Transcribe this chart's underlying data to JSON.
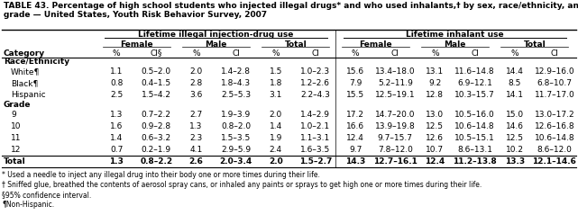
{
  "title": "TABLE 43. Percentage of high school students who injected illegal drugs* and who used inhalants,† by sex, race/ethnicity, and\ngrade — United States, Youth Risk Behavior Survey, 2007",
  "col_header_1": "Lifetime illegal injection-drug use",
  "col_header_2": "Lifetime inhalant use",
  "sub_headers": [
    "Female",
    "Male",
    "Total",
    "Female",
    "Male",
    "Total"
  ],
  "col_labels": [
    "%",
    "CI§",
    "%",
    "CI",
    "%",
    "CI",
    "%",
    "CI",
    "%",
    "CI",
    "%",
    "CI"
  ],
  "category_label": "Category",
  "sections": [
    {
      "name": "Race/Ethnicity",
      "rows": [
        {
          "label": "White¶",
          "values": [
            "1.1",
            "0.5–2.0",
            "2.0",
            "1.4–2.8",
            "1.5",
            "1.0–2.3",
            "15.6",
            "13.4–18.0",
            "13.1",
            "11.6–14.8",
            "14.4",
            "12.9–16.0"
          ]
        },
        {
          "label": "Black¶",
          "values": [
            "0.8",
            "0.4–1.5",
            "2.8",
            "1.8–4.3",
            "1.8",
            "1.2–2.6",
            "7.9",
            "5.2–11.9",
            "9.2",
            "6.9–12.1",
            "8.5",
            "6.8–10.7"
          ]
        },
        {
          "label": "Hispanic",
          "values": [
            "2.5",
            "1.5–4.2",
            "3.6",
            "2.5–5.3",
            "3.1",
            "2.2–4.3",
            "15.5",
            "12.5–19.1",
            "12.8",
            "10.3–15.7",
            "14.1",
            "11.7–17.0"
          ]
        }
      ]
    },
    {
      "name": "Grade",
      "rows": [
        {
          "label": "9",
          "values": [
            "1.3",
            "0.7–2.2",
            "2.7",
            "1.9–3.9",
            "2.0",
            "1.4–2.9",
            "17.2",
            "14.7–20.0",
            "13.0",
            "10.5–16.0",
            "15.0",
            "13.0–17.2"
          ]
        },
        {
          "label": "10",
          "values": [
            "1.6",
            "0.9–2.8",
            "1.3",
            "0.8–2.0",
            "1.4",
            "1.0–2.1",
            "16.6",
            "13.9–19.8",
            "12.5",
            "10.6–14.8",
            "14.6",
            "12.6–16.8"
          ]
        },
        {
          "label": "11",
          "values": [
            "1.4",
            "0.6–3.2",
            "2.3",
            "1.5–3.5",
            "1.9",
            "1.1–3.1",
            "12.4",
            "9.7–15.7",
            "12.6",
            "10.5–15.1",
            "12.5",
            "10.6–14.8"
          ]
        },
        {
          "label": "12",
          "values": [
            "0.7",
            "0.2–1.9",
            "4.1",
            "2.9–5.9",
            "2.4",
            "1.6–3.5",
            "9.7",
            "7.8–12.0",
            "10.7",
            "8.6–13.1",
            "10.2",
            "8.6–12.0"
          ]
        }
      ]
    }
  ],
  "total_row": {
    "label": "Total",
    "values": [
      "1.3",
      "0.8–2.2",
      "2.6",
      "2.0–3.4",
      "2.0",
      "1.5–2.7",
      "14.3",
      "12.7–16.1",
      "12.4",
      "11.2–13.8",
      "13.3",
      "12.1–14.6"
    ]
  },
  "footnotes": [
    "* Used a needle to inject any illegal drug into their body one or more times during their life.",
    "† Sniffed glue, breathed the contents of aerosol spray cans, or inhaled any paints or sprays to get high one or more times during their life.",
    "§95% confidence interval.",
    "¶Non-Hispanic."
  ],
  "bg_color": "#ffffff",
  "title_fontsize": 6.5,
  "header_fontsize": 6.5,
  "data_fontsize": 6.5,
  "footnote_fontsize": 5.5
}
